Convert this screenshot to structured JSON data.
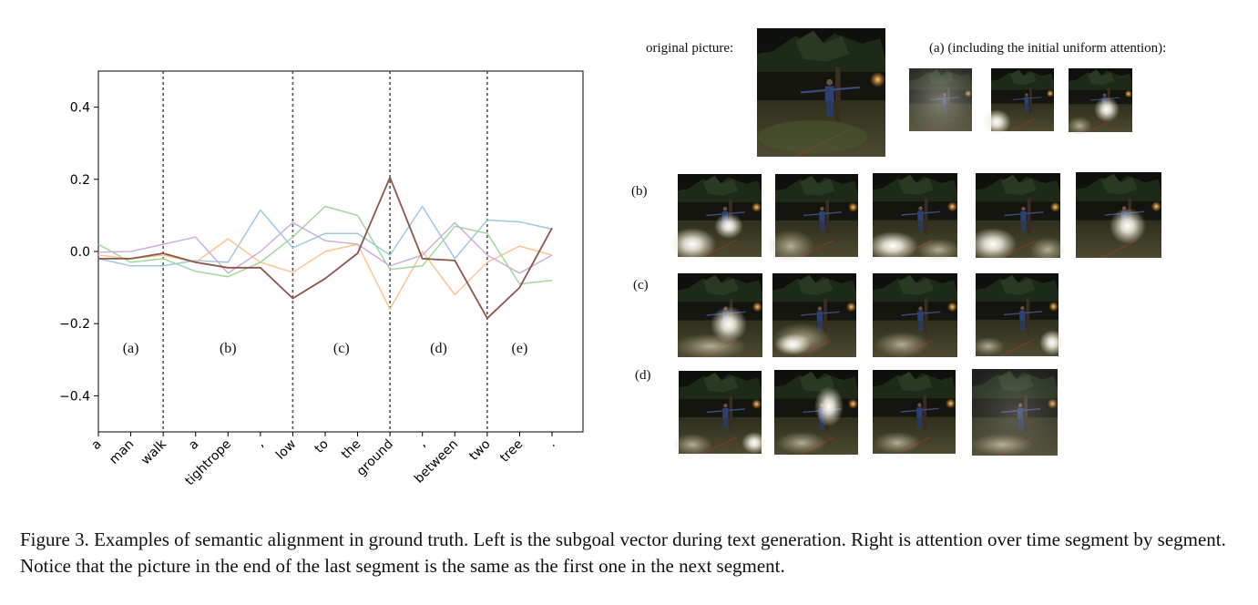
{
  "chart_data": {
    "type": "line",
    "categories": [
      "a",
      "man",
      "walk",
      "a",
      "tightrope",
      ",",
      "low",
      "to",
      "the",
      "ground",
      ",",
      "between",
      "two",
      "tree",
      "."
    ],
    "ylim": [
      -0.5,
      0.5
    ],
    "yticks": [
      0.4,
      0.2,
      0.0,
      -0.2,
      -0.4
    ],
    "ytick_labels": [
      "0.4",
      "0.2",
      "0.0",
      "−0.2",
      "−0.4"
    ],
    "grid": false,
    "segment_boundaries_after": [
      "walk",
      "low",
      "ground",
      "two"
    ],
    "segment_labels": [
      "(a)",
      "(b)",
      "(c)",
      "(d)",
      "(e)"
    ],
    "series": [
      {
        "color": "#9ecae1",
        "values": [
          -0.02,
          -0.04,
          -0.04,
          -0.025,
          -0.03,
          0.115,
          0.01,
          0.05,
          0.05,
          -0.01,
          0.125,
          -0.02,
          0.087,
          0.082,
          0.062
        ]
      },
      {
        "color": "#fdc591",
        "values": [
          -0.01,
          -0.02,
          -0.01,
          -0.03,
          0.035,
          -0.03,
          -0.058,
          0.0,
          0.02,
          -0.16,
          0.0,
          -0.12,
          -0.03,
          0.015,
          -0.01
        ]
      },
      {
        "color": "#a1d99b",
        "values": [
          0.02,
          -0.03,
          -0.02,
          -0.055,
          -0.07,
          -0.03,
          0.04,
          0.125,
          0.1,
          -0.05,
          -0.04,
          0.07,
          0.05,
          -0.09,
          -0.08
        ]
      },
      {
        "color": "#cab2de",
        "values": [
          -0.002,
          0.0,
          0.02,
          0.04,
          -0.06,
          0.0,
          0.08,
          0.03,
          0.02,
          -0.04,
          -0.01,
          0.08,
          -0.01,
          -0.06,
          -0.01
        ]
      },
      {
        "color": "#8c564b",
        "values": [
          -0.02,
          -0.02,
          -0.005,
          -0.03,
          -0.045,
          -0.045,
          -0.13,
          -0.075,
          -0.005,
          0.205,
          -0.02,
          -0.025,
          -0.185,
          -0.1,
          0.065
        ]
      }
    ]
  },
  "panel": {
    "original_label": "original picture:",
    "row_a_label": "(a) (including the initial uniform attention):",
    "row_b_label": "(b)",
    "row_c_label": "(c)",
    "row_d_label": "(d)"
  },
  "caption": "Figure 3. Examples of semantic alignment in ground truth. Left is the subgoal vector during text generation. Right is attention over time segment by segment. Notice that the picture in the end of the last segment is the same as the first one in the next segment."
}
